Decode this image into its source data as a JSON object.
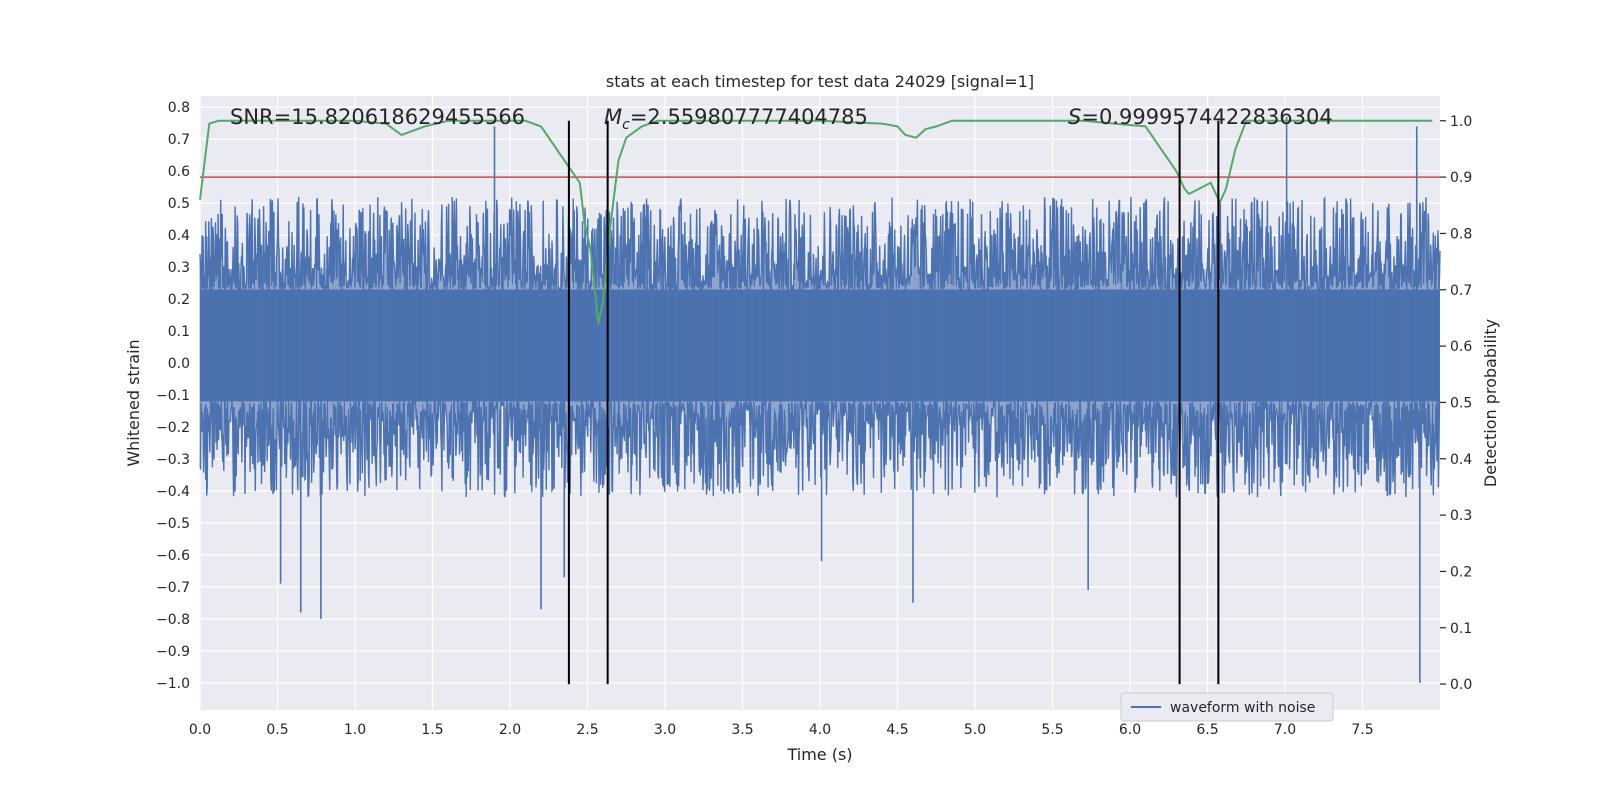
{
  "chart_data": {
    "type": "line",
    "title": "stats at each timestep for test data 24029 [signal=1]",
    "xlabel": "Time (s)",
    "ylabel": "Whitened strain",
    "y2label": "Detection probability",
    "xlim": [
      0.0,
      8.0
    ],
    "ylim": [
      -1.085,
      0.835
    ],
    "y2lim": [
      -0.046,
      1.044
    ],
    "xticks": [
      0.0,
      0.5,
      1.0,
      1.5,
      2.0,
      2.5,
      3.0,
      3.5,
      4.0,
      4.5,
      5.0,
      5.5,
      6.0,
      6.5,
      7.0,
      7.5
    ],
    "xtick_labels": [
      "0.0",
      "0.5",
      "1.0",
      "1.5",
      "2.0",
      "2.5",
      "3.0",
      "3.5",
      "4.0",
      "4.5",
      "5.0",
      "5.5",
      "6.0",
      "6.5",
      "7.0",
      "7.5"
    ],
    "yticks": [
      0.8,
      0.7,
      0.6,
      0.5,
      0.4,
      0.3,
      0.2,
      0.1,
      0.0,
      -0.1,
      -0.2,
      -0.3,
      -0.4,
      -0.5,
      -0.6,
      -0.7,
      -0.8,
      -0.9,
      -1.0
    ],
    "ytick_labels": [
      "0.8",
      "0.7",
      "0.6",
      "0.5",
      "0.4",
      "0.3",
      "0.2",
      "0.1",
      "0.0",
      "−0.1",
      "−0.2",
      "−0.3",
      "−0.4",
      "−0.5",
      "−0.6",
      "−0.7",
      "−0.8",
      "−0.9",
      "−1.0"
    ],
    "y2ticks": [
      1.0,
      0.9,
      0.8,
      0.7,
      0.6,
      0.5,
      0.4,
      0.3,
      0.2,
      0.1,
      0.0
    ],
    "y2tick_labels": [
      "1.0",
      "0.9",
      "0.8",
      "0.7",
      "0.6",
      "0.5",
      "0.4",
      "0.3",
      "0.2",
      "0.1",
      "0.0"
    ],
    "grid": true,
    "legend": {
      "placement": "lower-right",
      "entries": [
        "waveform with noise"
      ]
    },
    "annotations": {
      "snr": "SNR=15.820618629455566",
      "mc_symbol": "M",
      "mc_sub": "c",
      "mc_value": "=2.559807777404785",
      "s_symbol": "S",
      "s_value": "=0.9999574422836304"
    },
    "threshold_line": {
      "y2": 0.9,
      "color": "#c44e52"
    },
    "vertical_lines_x": [
      2.38,
      2.63,
      6.32,
      6.57
    ],
    "vertical_lines_y2_range": [
      0.0,
      1.0
    ],
    "waveform": {
      "name": "waveform with noise",
      "color": "#4c72b0",
      "dense_band": [
        -0.12,
        0.23
      ],
      "typical_envelope": [
        -0.3,
        0.4
      ],
      "extreme_peaks_x": [
        0.52,
        0.65,
        0.78,
        1.9,
        2.2,
        2.35,
        4.01,
        4.6,
        5.73,
        7.01,
        7.85,
        7.87
      ],
      "extreme_peaks_y": [
        -0.69,
        -0.78,
        -0.8,
        0.74,
        -0.77,
        -0.67,
        -0.62,
        -0.75,
        -0.71,
        0.77,
        0.74,
        -1.0
      ]
    },
    "series": [
      {
        "name": "",
        "axis": "y2",
        "color": "#55a868",
        "x": [
          0.0,
          0.06,
          0.12,
          0.3,
          0.6,
          1.0,
          1.2,
          1.3,
          1.45,
          1.6,
          1.8,
          2.0,
          2.1,
          2.2,
          2.25,
          2.3,
          2.4,
          2.45,
          2.48,
          2.52,
          2.57,
          2.6,
          2.65,
          2.7,
          2.75,
          2.85,
          2.95,
          3.1,
          3.5,
          4.0,
          4.4,
          4.5,
          4.55,
          4.62,
          4.68,
          4.75,
          4.85,
          4.9,
          5.2,
          5.6,
          5.7,
          5.9,
          6.1,
          6.15,
          6.2,
          6.25,
          6.3,
          6.35,
          6.38,
          6.45,
          6.52,
          6.58,
          6.62,
          6.68,
          6.75,
          7.0,
          7.5,
          7.95
        ],
        "y": [
          0.86,
          0.995,
          1.0,
          1.0,
          1.0,
          1.0,
          0.995,
          0.975,
          0.99,
          1.0,
          1.0,
          1.0,
          1.0,
          0.99,
          0.97,
          0.95,
          0.91,
          0.89,
          0.82,
          0.77,
          0.64,
          0.68,
          0.82,
          0.93,
          0.97,
          0.99,
          1.0,
          1.0,
          1.0,
          1.0,
          0.995,
          0.99,
          0.975,
          0.97,
          0.985,
          0.99,
          1.0,
          1.0,
          1.0,
          1.0,
          1.0,
          0.995,
          0.99,
          0.97,
          0.95,
          0.93,
          0.91,
          0.88,
          0.87,
          0.88,
          0.89,
          0.855,
          0.88,
          0.95,
          1.0,
          1.0,
          1.0,
          1.0
        ]
      }
    ]
  }
}
